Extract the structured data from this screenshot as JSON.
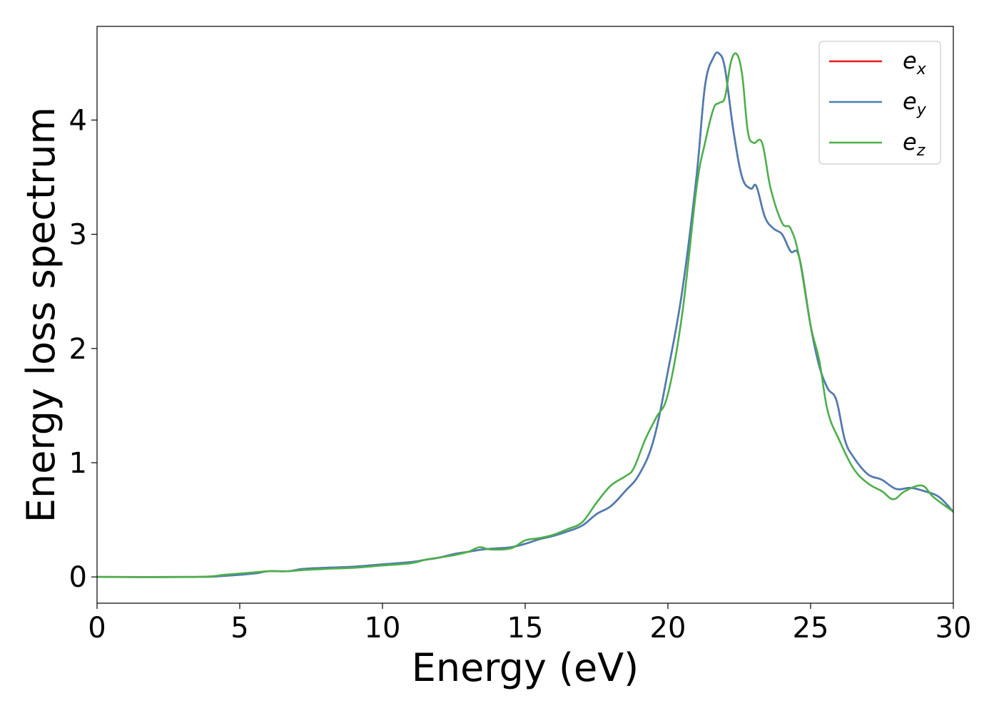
{
  "chart_data": {
    "type": "line",
    "xlabel": "Energy (eV)",
    "ylabel": "Energy loss spectrum",
    "xlim": [
      0,
      30
    ],
    "ylim": [
      -0.23,
      4.82
    ],
    "xticks": [
      0,
      5,
      10,
      15,
      20,
      25,
      30
    ],
    "yticks": [
      0,
      1,
      2,
      3,
      4
    ],
    "grid": false,
    "legend": {
      "position": "top-right"
    },
    "series": [
      {
        "name": "e_x",
        "label_main": "e",
        "label_sub": "x",
        "color": "#e41a1c",
        "x": [
          0,
          3.5,
          4.5,
          5.5,
          6,
          6.7,
          7.2,
          8,
          9,
          10,
          11,
          11.5,
          12,
          12.5,
          13,
          13.5,
          14,
          14.5,
          15,
          15.5,
          16,
          16.5,
          17,
          17.5,
          18,
          18.5,
          19,
          19.5,
          20,
          20.5,
          21,
          21.3,
          21.6,
          21.8,
          22,
          22.3,
          22.6,
          22.9,
          23.1,
          23.4,
          23.7,
          24,
          24.3,
          24.6,
          25,
          25.3,
          25.6,
          25.9,
          26.2,
          26.5,
          27,
          27.5,
          28,
          28.5,
          29,
          29.5,
          30
        ],
        "y": [
          0,
          0,
          0.01,
          0.03,
          0.05,
          0.05,
          0.07,
          0.08,
          0.09,
          0.11,
          0.13,
          0.15,
          0.17,
          0.2,
          0.22,
          0.24,
          0.25,
          0.26,
          0.29,
          0.33,
          0.36,
          0.4,
          0.45,
          0.55,
          0.62,
          0.75,
          0.9,
          1.2,
          1.8,
          2.5,
          3.5,
          4.3,
          4.55,
          4.58,
          4.45,
          3.9,
          3.5,
          3.4,
          3.42,
          3.15,
          3.05,
          3.0,
          2.85,
          2.8,
          2.2,
          1.85,
          1.65,
          1.55,
          1.2,
          1.05,
          0.9,
          0.85,
          0.77,
          0.78,
          0.75,
          0.7,
          0.57
        ]
      },
      {
        "name": "e_y",
        "label_main": "e",
        "label_sub": "y",
        "color": "#4a7fb5",
        "x": [
          0,
          3.5,
          4.5,
          5.5,
          6,
          6.7,
          7.2,
          8,
          9,
          10,
          11,
          11.5,
          12,
          12.5,
          13,
          13.5,
          14,
          14.5,
          15,
          15.5,
          16,
          16.5,
          17,
          17.5,
          18,
          18.5,
          19,
          19.5,
          20,
          20.5,
          21,
          21.3,
          21.6,
          21.8,
          22,
          22.3,
          22.6,
          22.9,
          23.1,
          23.4,
          23.7,
          24,
          24.3,
          24.6,
          25,
          25.3,
          25.6,
          25.9,
          26.2,
          26.5,
          27,
          27.5,
          28,
          28.5,
          29,
          29.5,
          30
        ],
        "y": [
          0,
          0,
          0.01,
          0.03,
          0.05,
          0.05,
          0.07,
          0.08,
          0.09,
          0.11,
          0.13,
          0.15,
          0.17,
          0.2,
          0.22,
          0.24,
          0.25,
          0.26,
          0.29,
          0.33,
          0.36,
          0.4,
          0.45,
          0.55,
          0.62,
          0.75,
          0.9,
          1.2,
          1.8,
          2.5,
          3.5,
          4.3,
          4.55,
          4.58,
          4.45,
          3.9,
          3.5,
          3.4,
          3.42,
          3.15,
          3.05,
          3.0,
          2.85,
          2.8,
          2.2,
          1.85,
          1.65,
          1.55,
          1.2,
          1.05,
          0.9,
          0.85,
          0.77,
          0.78,
          0.75,
          0.7,
          0.57
        ]
      },
      {
        "name": "e_z",
        "label_main": "e",
        "label_sub": "z",
        "color": "#4daf4a",
        "x": [
          0,
          3.5,
          4.5,
          5.5,
          6,
          6.7,
          7.2,
          8,
          9,
          10,
          11,
          11.5,
          12,
          12.5,
          13,
          13.4,
          13.8,
          14.5,
          15,
          15.5,
          16,
          16.5,
          17,
          17.5,
          18,
          18.5,
          18.8,
          19.2,
          19.6,
          20,
          20.5,
          21,
          21.3,
          21.6,
          21.8,
          22,
          22.2,
          22.4,
          22.6,
          22.8,
          23,
          23.3,
          23.6,
          24,
          24.3,
          24.6,
          25,
          25.3,
          25.6,
          26,
          26.5,
          27,
          27.5,
          27.9,
          28.3,
          28.9,
          29.3,
          30
        ],
        "y": [
          0,
          0,
          0.02,
          0.04,
          0.05,
          0.05,
          0.06,
          0.07,
          0.08,
          0.1,
          0.12,
          0.15,
          0.17,
          0.19,
          0.22,
          0.26,
          0.24,
          0.25,
          0.32,
          0.34,
          0.37,
          0.42,
          0.48,
          0.65,
          0.8,
          0.88,
          0.95,
          1.2,
          1.4,
          1.6,
          2.3,
          3.4,
          3.8,
          4.1,
          4.15,
          4.2,
          4.5,
          4.58,
          4.4,
          3.9,
          3.8,
          3.8,
          3.4,
          3.1,
          3.05,
          2.8,
          2.2,
          1.9,
          1.45,
          1.2,
          0.95,
          0.82,
          0.75,
          0.68,
          0.75,
          0.8,
          0.7,
          0.57
        ]
      }
    ]
  }
}
